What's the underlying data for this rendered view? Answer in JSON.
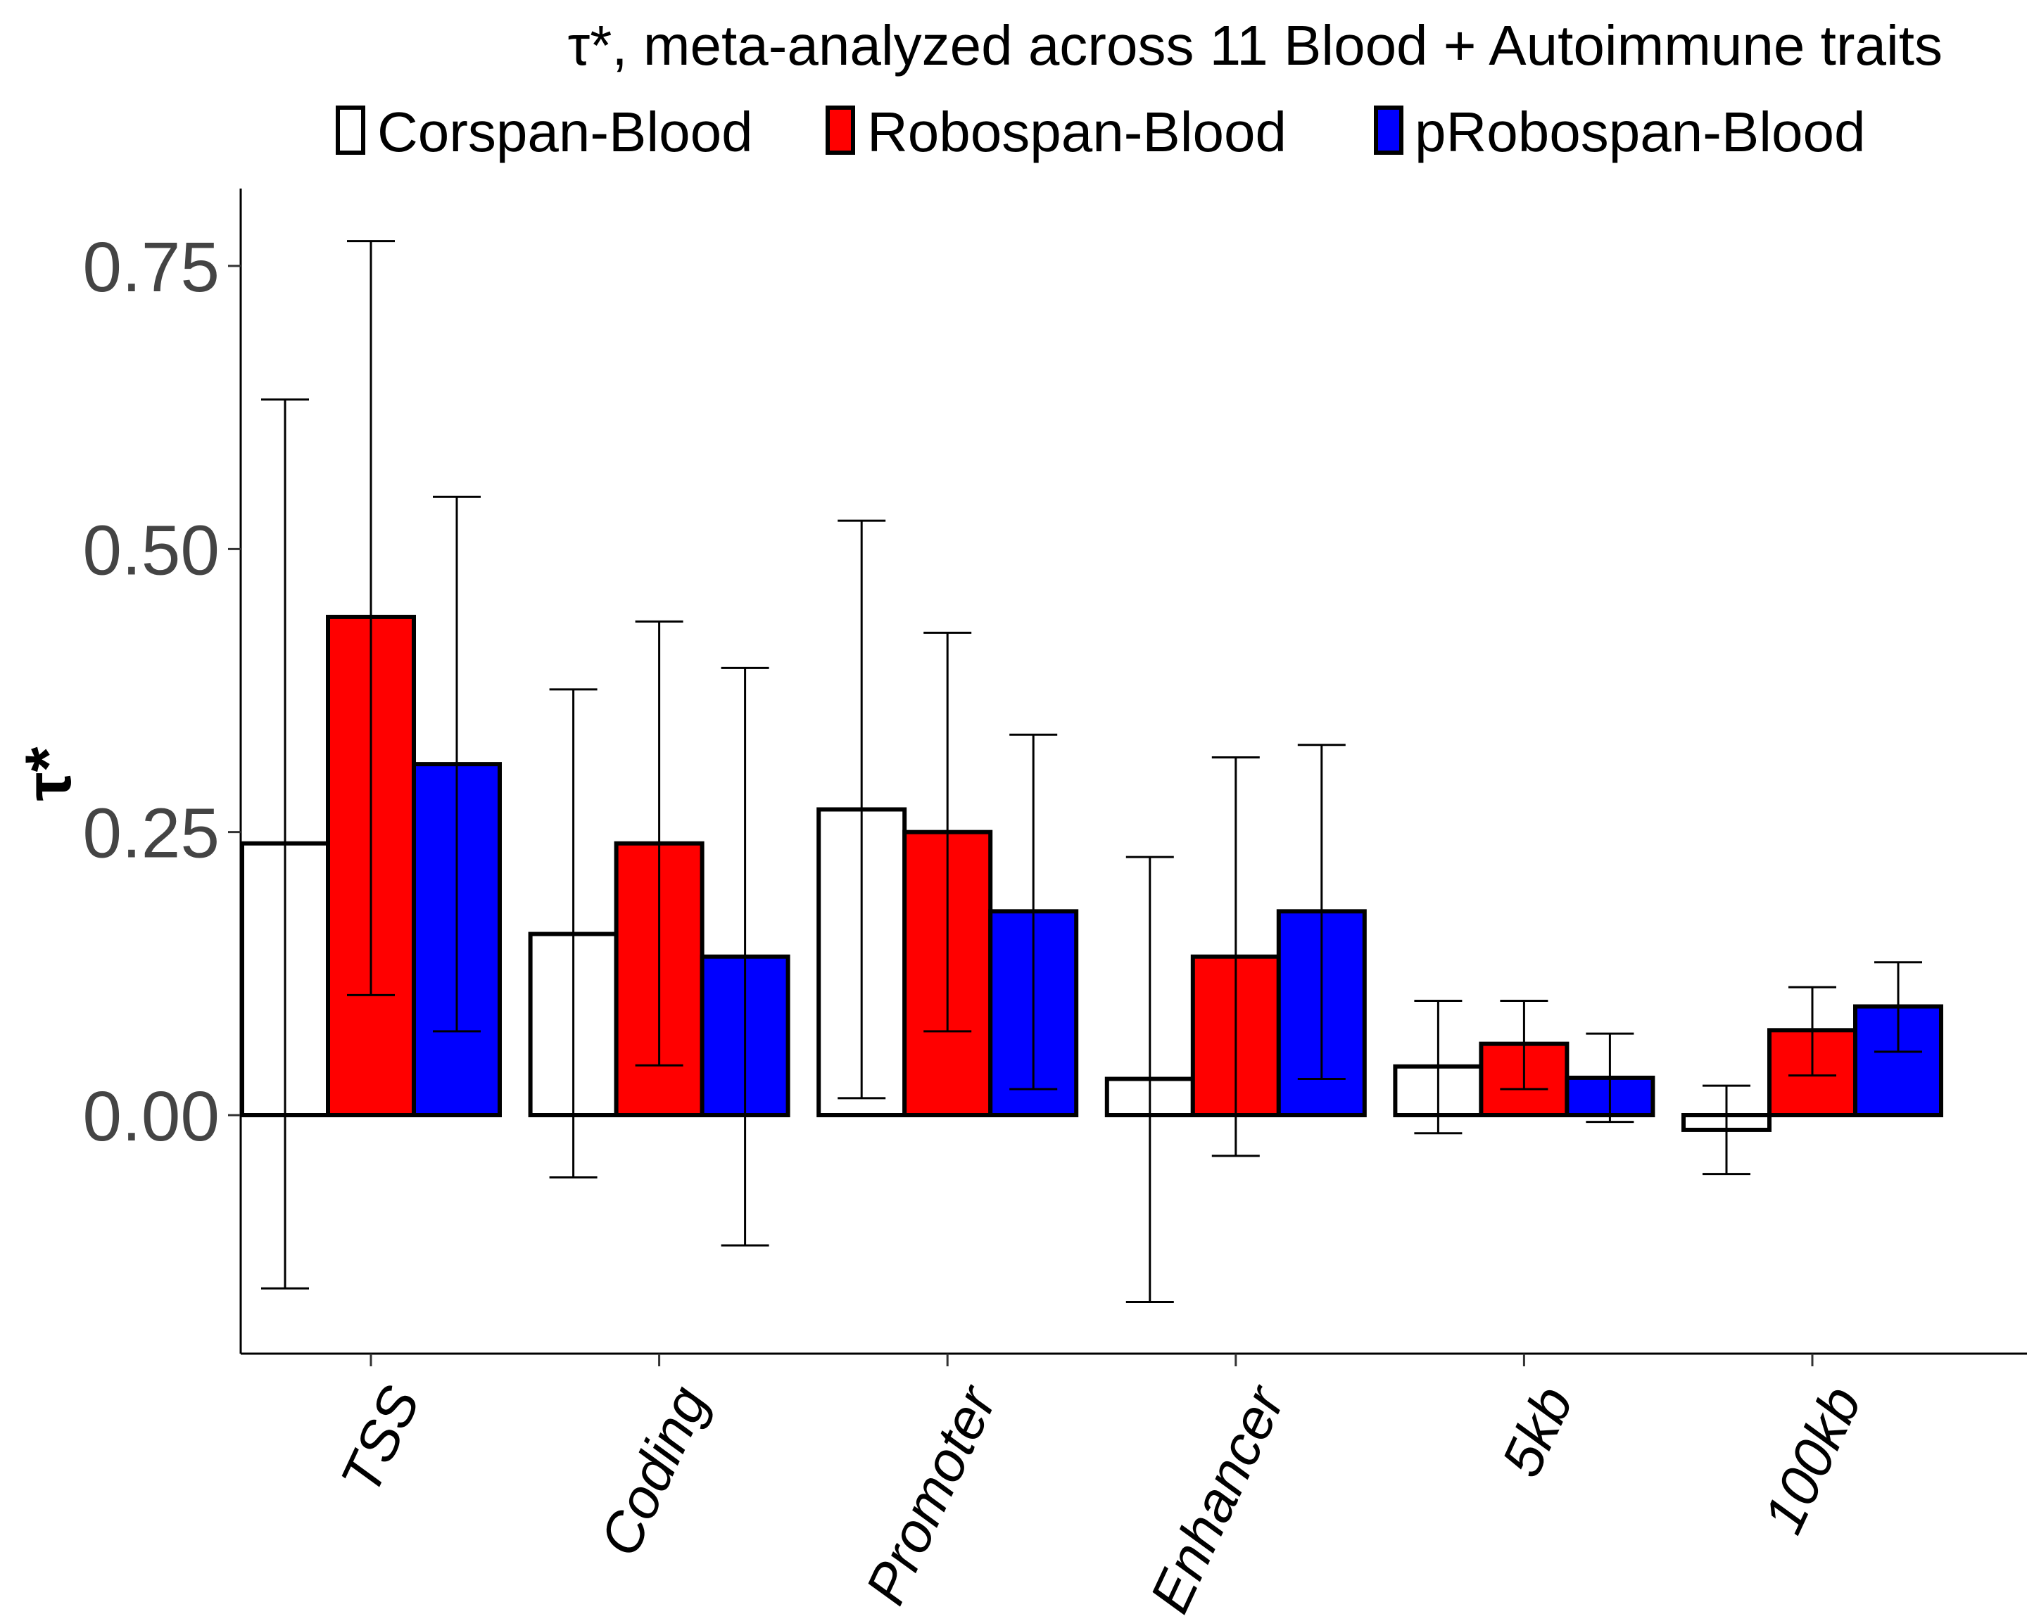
{
  "chart_data": {
    "type": "bar",
    "title": "τ*, meta-analyzed across 11 Blood + Autoimmune traits",
    "ylabel": "τ*",
    "xlabel": "",
    "categories": [
      "TSS",
      "Coding",
      "Promoter",
      "Enhancer",
      "5kb",
      "100kb"
    ],
    "ylim": [
      -0.21,
      0.82
    ],
    "yticks": [
      0.0,
      0.25,
      0.5,
      0.75
    ],
    "ytick_labels": [
      "0.00",
      "0.25",
      "0.50",
      "0.75"
    ],
    "grid": false,
    "legend_position": "top",
    "series": [
      {
        "name": "Corspan-Blood",
        "color": "#FFFFFF",
        "values": [
          0.24,
          0.16,
          0.27,
          0.032,
          0.043,
          -0.013
        ],
        "err_low": [
          -0.153,
          -0.055,
          0.015,
          -0.165,
          -0.016,
          -0.052
        ],
        "err_high": [
          0.632,
          0.376,
          0.525,
          0.228,
          0.101,
          0.026
        ]
      },
      {
        "name": "Robospan-Blood",
        "color": "#FF0000",
        "values": [
          0.44,
          0.24,
          0.25,
          0.14,
          0.063,
          0.075
        ],
        "err_low": [
          0.106,
          0.044,
          0.074,
          -0.036,
          0.023,
          0.035
        ],
        "err_high": [
          0.772,
          0.436,
          0.426,
          0.316,
          0.101,
          0.113
        ]
      },
      {
        "name": "pRobospan-Blood",
        "color": "#0000FF",
        "values": [
          0.31,
          0.14,
          0.18,
          0.18,
          0.033,
          0.096
        ],
        "err_low": [
          0.074,
          -0.115,
          0.023,
          0.032,
          -0.006,
          0.056
        ],
        "err_high": [
          0.546,
          0.395,
          0.336,
          0.327,
          0.072,
          0.135
        ]
      }
    ]
  }
}
